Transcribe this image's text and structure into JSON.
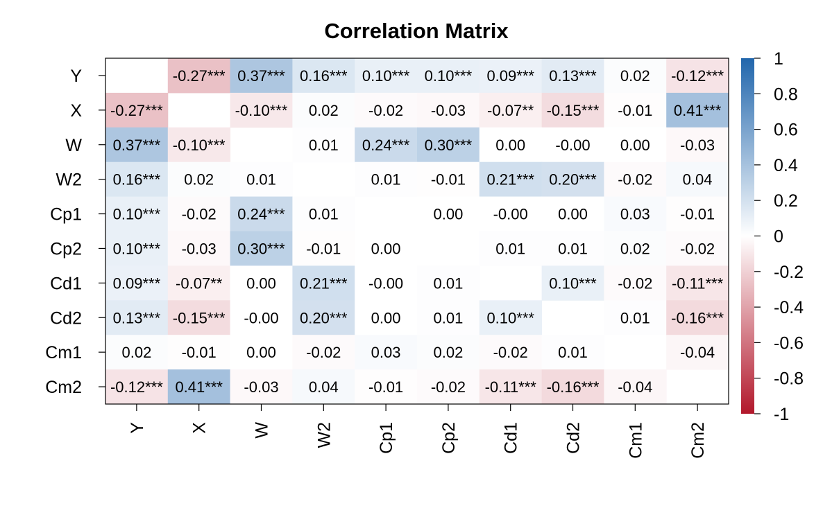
{
  "chart_data": {
    "type": "heatmap",
    "title": "Correlation Matrix",
    "xlabel": "",
    "ylabel": "",
    "variables": [
      "Y",
      "X",
      "W",
      "W2",
      "Cp1",
      "Cp2",
      "Cd1",
      "Cd2",
      "Cm1",
      "Cm2"
    ],
    "values": [
      [
        null,
        -0.27,
        0.37,
        0.16,
        0.1,
        0.1,
        0.09,
        0.13,
        0.02,
        -0.12
      ],
      [
        -0.27,
        null,
        -0.1,
        0.02,
        -0.02,
        -0.03,
        -0.07,
        -0.15,
        -0.01,
        0.41
      ],
      [
        0.37,
        -0.1,
        null,
        0.01,
        0.24,
        0.3,
        0.0,
        -0.0,
        0.0,
        -0.03
      ],
      [
        0.16,
        0.02,
        0.01,
        null,
        0.01,
        -0.01,
        0.21,
        0.2,
        -0.02,
        0.04
      ],
      [
        0.1,
        -0.02,
        0.24,
        0.01,
        null,
        0.0,
        -0.0,
        0.0,
        0.03,
        -0.01
      ],
      [
        0.1,
        -0.03,
        0.3,
        -0.01,
        0.0,
        null,
        0.01,
        0.01,
        0.02,
        -0.02
      ],
      [
        0.09,
        -0.07,
        0.0,
        0.21,
        -0.0,
        0.01,
        null,
        0.1,
        -0.02,
        -0.11
      ],
      [
        0.13,
        -0.15,
        -0.0,
        0.2,
        0.0,
        0.01,
        0.1,
        null,
        0.01,
        -0.16
      ],
      [
        0.02,
        -0.01,
        0.0,
        -0.02,
        0.03,
        0.02,
        -0.02,
        0.01,
        null,
        -0.04
      ],
      [
        -0.12,
        0.41,
        -0.03,
        0.04,
        -0.01,
        -0.02,
        -0.11,
        -0.16,
        -0.04,
        null
      ]
    ],
    "labels": [
      [
        "",
        "-0.27***",
        "0.37***",
        "0.16***",
        "0.10***",
        "0.10***",
        "0.09***",
        "0.13***",
        "0.02",
        "-0.12***"
      ],
      [
        "-0.27***",
        "",
        "-0.10***",
        "0.02",
        "-0.02",
        "-0.03",
        "-0.07**",
        "-0.15***",
        "-0.01",
        "0.41***"
      ],
      [
        "0.37***",
        "-0.10***",
        "",
        "0.01",
        "0.24***",
        "0.30***",
        "0.00",
        "-0.00",
        "0.00",
        "-0.03"
      ],
      [
        "0.16***",
        "0.02",
        "0.01",
        "",
        "0.01",
        "-0.01",
        "0.21***",
        "0.20***",
        "-0.02",
        "0.04"
      ],
      [
        "0.10***",
        "-0.02",
        "0.24***",
        "0.01",
        "",
        "0.00",
        "-0.00",
        "0.00",
        "0.03",
        "-0.01"
      ],
      [
        "0.10***",
        "-0.03",
        "0.30***",
        "-0.01",
        "0.00",
        "",
        "0.01",
        "0.01",
        "0.02",
        "-0.02"
      ],
      [
        "0.09***",
        "-0.07**",
        "0.00",
        "0.21***",
        "-0.00",
        "0.01",
        "",
        "0.10***",
        "-0.02",
        "-0.11***"
      ],
      [
        "0.13***",
        "-0.15***",
        "-0.00",
        "0.20***",
        "0.00",
        "0.01",
        "0.10***",
        "",
        "0.01",
        "-0.16***"
      ],
      [
        "0.02",
        "-0.01",
        "0.00",
        "-0.02",
        "0.03",
        "0.02",
        "-0.02",
        "0.01",
        "",
        "-0.04"
      ],
      [
        "-0.12***",
        "0.41***",
        "-0.03",
        "0.04",
        "-0.01",
        "-0.02",
        "-0.11***",
        "-0.16***",
        "-0.04",
        ""
      ]
    ],
    "scale": {
      "min": -1,
      "max": 1,
      "ticks": [
        "1",
        "0.8",
        "0.6",
        "0.4",
        "0.2",
        "0",
        "-0.2",
        "-0.4",
        "-0.6",
        "-0.8",
        "-1"
      ],
      "tick_values": [
        1,
        0.8,
        0.6,
        0.4,
        0.2,
        0,
        -0.2,
        -0.4,
        -0.6,
        -0.8,
        -1
      ],
      "color_low": "#b2182b",
      "color_mid": "#ffffff",
      "color_high": "#2166ac"
    },
    "legend": "right",
    "grid": false
  }
}
